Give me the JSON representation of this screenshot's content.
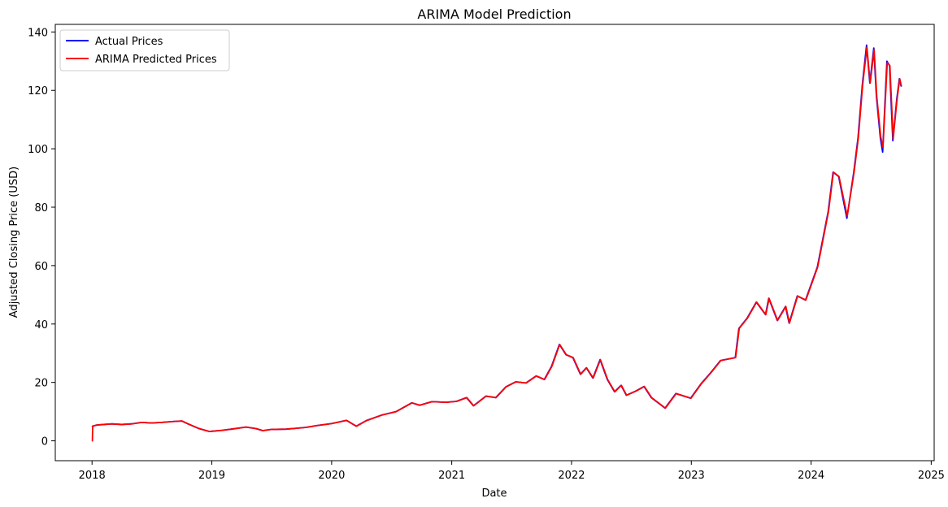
{
  "chart_data": {
    "type": "line",
    "title": "ARIMA Model Prediction",
    "xlabel": "Date",
    "ylabel": "Adjusted Closing Price (USD)",
    "xlim": [
      "2017-09-11",
      "2025-01-10"
    ],
    "ylim": [
      -6.8,
      142.6
    ],
    "x_ticks": [
      "2018",
      "2019",
      "2020",
      "2021",
      "2022",
      "2023",
      "2024",
      "2025"
    ],
    "x_tick_dates": [
      "2018-01-01",
      "2019-01-01",
      "2020-01-01",
      "2021-01-01",
      "2022-01-01",
      "2023-01-01",
      "2024-01-01",
      "2025-01-01"
    ],
    "y_ticks": [
      0,
      20,
      40,
      60,
      80,
      100,
      120,
      140
    ],
    "grid": false,
    "legend": {
      "placement": "top-left"
    },
    "series": [
      {
        "name": "Actual Prices",
        "color": "#0000ff",
        "points": [
          [
            "2018-01-02",
            5.0
          ],
          [
            "2018-01-15",
            5.4
          ],
          [
            "2018-02-05",
            5.6
          ],
          [
            "2018-03-01",
            5.8
          ],
          [
            "2018-04-01",
            5.6
          ],
          [
            "2018-05-01",
            5.8
          ],
          [
            "2018-06-01",
            6.3
          ],
          [
            "2018-07-01",
            6.1
          ],
          [
            "2018-08-01",
            6.3
          ],
          [
            "2018-09-01",
            6.6
          ],
          [
            "2018-10-01",
            6.8
          ],
          [
            "2018-10-20",
            5.8
          ],
          [
            "2018-11-20",
            4.3
          ],
          [
            "2018-12-24",
            3.2
          ],
          [
            "2019-02-01",
            3.6
          ],
          [
            "2019-03-01",
            4.0
          ],
          [
            "2019-04-15",
            4.7
          ],
          [
            "2019-05-15",
            4.2
          ],
          [
            "2019-06-05",
            3.5
          ],
          [
            "2019-07-01",
            3.9
          ],
          [
            "2019-08-15",
            4.0
          ],
          [
            "2019-09-15",
            4.3
          ],
          [
            "2019-10-15",
            4.6
          ],
          [
            "2019-11-15",
            5.2
          ],
          [
            "2019-12-31",
            5.9
          ],
          [
            "2020-02-15",
            7.0
          ],
          [
            "2020-03-16",
            5.0
          ],
          [
            "2020-04-15",
            6.9
          ],
          [
            "2020-06-01",
            8.8
          ],
          [
            "2020-07-15",
            10.0
          ],
          [
            "2020-09-01",
            13.0
          ],
          [
            "2020-09-25",
            12.2
          ],
          [
            "2020-11-01",
            13.4
          ],
          [
            "2020-12-15",
            13.2
          ],
          [
            "2021-01-15",
            13.5
          ],
          [
            "2021-02-15",
            14.8
          ],
          [
            "2021-03-08",
            12.0
          ],
          [
            "2021-04-15",
            15.3
          ],
          [
            "2021-05-15",
            14.8
          ],
          [
            "2021-06-15",
            18.5
          ],
          [
            "2021-07-15",
            20.2
          ],
          [
            "2021-08-15",
            19.8
          ],
          [
            "2021-09-15",
            22.2
          ],
          [
            "2021-10-10",
            21.0
          ],
          [
            "2021-11-01",
            25.5
          ],
          [
            "2021-11-25",
            33.0
          ],
          [
            "2021-12-15",
            29.5
          ],
          [
            "2022-01-05",
            28.5
          ],
          [
            "2022-01-28",
            22.8
          ],
          [
            "2022-02-15",
            25.0
          ],
          [
            "2022-03-07",
            21.5
          ],
          [
            "2022-03-29",
            27.8
          ],
          [
            "2022-04-20",
            21.0
          ],
          [
            "2022-05-12",
            16.8
          ],
          [
            "2022-06-01",
            19.0
          ],
          [
            "2022-06-17",
            15.6
          ],
          [
            "2022-07-15",
            17.0
          ],
          [
            "2022-08-10",
            18.6
          ],
          [
            "2022-09-01",
            14.8
          ],
          [
            "2022-10-13",
            11.2
          ],
          [
            "2022-11-15",
            16.2
          ],
          [
            "2022-12-30",
            14.6
          ],
          [
            "2023-01-31",
            19.6
          ],
          [
            "2023-02-28",
            23.2
          ],
          [
            "2023-03-31",
            27.5
          ],
          [
            "2023-05-15",
            28.5
          ],
          [
            "2023-05-26",
            38.5
          ],
          [
            "2023-06-20",
            42.0
          ],
          [
            "2023-07-18",
            47.5
          ],
          [
            "2023-08-15",
            43.2
          ],
          [
            "2023-08-25",
            48.8
          ],
          [
            "2023-09-20",
            41.2
          ],
          [
            "2023-10-15",
            46.0
          ],
          [
            "2023-10-26",
            40.3
          ],
          [
            "2023-11-20",
            49.6
          ],
          [
            "2023-12-15",
            48.2
          ],
          [
            "2024-01-20",
            59.5
          ],
          [
            "2024-02-22",
            78.5
          ],
          [
            "2024-03-08",
            92.0
          ],
          [
            "2024-03-25",
            90.5
          ],
          [
            "2024-04-19",
            76.2
          ],
          [
            "2024-05-10",
            92.0
          ],
          [
            "2024-05-23",
            103.8
          ],
          [
            "2024-06-05",
            121.8
          ],
          [
            "2024-06-18",
            135.5
          ],
          [
            "2024-06-28",
            122.5
          ],
          [
            "2024-07-10",
            134.5
          ],
          [
            "2024-07-18",
            118.0
          ],
          [
            "2024-07-30",
            103.7
          ],
          [
            "2024-08-06",
            98.9
          ],
          [
            "2024-08-19",
            130.0
          ],
          [
            "2024-08-27",
            128.5
          ],
          [
            "2024-09-06",
            102.8
          ],
          [
            "2024-09-18",
            117.0
          ],
          [
            "2024-09-26",
            124.0
          ],
          [
            "2024-10-01",
            121.5
          ]
        ]
      },
      {
        "name": "ARIMA Predicted Prices",
        "color": "#ff0000",
        "points": [
          [
            "2018-01-02",
            0.0
          ],
          [
            "2018-01-03",
            5.0
          ],
          [
            "2018-01-16",
            5.4
          ],
          [
            "2018-02-06",
            5.6
          ],
          [
            "2018-03-02",
            5.8
          ],
          [
            "2018-04-02",
            5.6
          ],
          [
            "2018-05-02",
            5.8
          ],
          [
            "2018-06-02",
            6.3
          ],
          [
            "2018-07-02",
            6.1
          ],
          [
            "2018-08-02",
            6.3
          ],
          [
            "2018-09-02",
            6.6
          ],
          [
            "2018-10-02",
            6.8
          ],
          [
            "2018-10-21",
            5.8
          ],
          [
            "2018-11-21",
            4.3
          ],
          [
            "2018-12-25",
            3.2
          ],
          [
            "2019-02-02",
            3.6
          ],
          [
            "2019-03-02",
            4.0
          ],
          [
            "2019-04-16",
            4.7
          ],
          [
            "2019-05-16",
            4.2
          ],
          [
            "2019-06-06",
            3.5
          ],
          [
            "2019-07-02",
            3.9
          ],
          [
            "2019-08-16",
            4.0
          ],
          [
            "2019-09-16",
            4.3
          ],
          [
            "2019-10-16",
            4.6
          ],
          [
            "2019-11-16",
            5.2
          ],
          [
            "2020-01-01",
            5.9
          ],
          [
            "2020-02-16",
            7.0
          ],
          [
            "2020-03-17",
            5.0
          ],
          [
            "2020-04-16",
            6.9
          ],
          [
            "2020-06-02",
            8.8
          ],
          [
            "2020-07-16",
            10.0
          ],
          [
            "2020-09-02",
            13.0
          ],
          [
            "2020-09-26",
            12.2
          ],
          [
            "2020-11-02",
            13.4
          ],
          [
            "2020-12-16",
            13.2
          ],
          [
            "2021-01-16",
            13.5
          ],
          [
            "2021-02-16",
            14.8
          ],
          [
            "2021-03-09",
            12.0
          ],
          [
            "2021-04-16",
            15.3
          ],
          [
            "2021-05-16",
            14.8
          ],
          [
            "2021-06-16",
            18.5
          ],
          [
            "2021-07-16",
            20.2
          ],
          [
            "2021-08-16",
            19.8
          ],
          [
            "2021-09-16",
            22.2
          ],
          [
            "2021-10-11",
            21.0
          ],
          [
            "2021-11-02",
            25.5
          ],
          [
            "2021-11-26",
            33.0
          ],
          [
            "2021-12-16",
            29.5
          ],
          [
            "2022-01-06",
            28.5
          ],
          [
            "2022-01-29",
            22.8
          ],
          [
            "2022-02-16",
            25.0
          ],
          [
            "2022-03-08",
            21.5
          ],
          [
            "2022-03-30",
            27.8
          ],
          [
            "2022-04-21",
            21.0
          ],
          [
            "2022-05-13",
            16.8
          ],
          [
            "2022-06-02",
            19.0
          ],
          [
            "2022-06-18",
            15.6
          ],
          [
            "2022-07-16",
            17.0
          ],
          [
            "2022-08-11",
            18.6
          ],
          [
            "2022-09-02",
            14.8
          ],
          [
            "2022-10-14",
            11.2
          ],
          [
            "2022-11-16",
            16.2
          ],
          [
            "2022-12-31",
            14.6
          ],
          [
            "2023-02-01",
            19.6
          ],
          [
            "2023-03-01",
            23.2
          ],
          [
            "2023-04-01",
            27.5
          ],
          [
            "2023-05-16",
            28.5
          ],
          [
            "2023-05-27",
            38.5
          ],
          [
            "2023-06-21",
            42.0
          ],
          [
            "2023-07-19",
            47.5
          ],
          [
            "2023-08-16",
            43.2
          ],
          [
            "2023-08-26",
            48.8
          ],
          [
            "2023-09-21",
            41.2
          ],
          [
            "2023-10-16",
            46.0
          ],
          [
            "2023-10-27",
            40.3
          ],
          [
            "2023-11-21",
            49.6
          ],
          [
            "2023-12-16",
            48.2
          ],
          [
            "2024-01-21",
            59.5
          ],
          [
            "2024-02-23",
            78.5
          ],
          [
            "2024-03-09",
            92.0
          ],
          [
            "2024-03-26",
            90.5
          ],
          [
            "2024-04-20",
            77.0
          ],
          [
            "2024-05-11",
            92.0
          ],
          [
            "2024-05-24",
            103.8
          ],
          [
            "2024-06-06",
            121.8
          ],
          [
            "2024-06-19",
            134.8
          ],
          [
            "2024-06-29",
            122.5
          ],
          [
            "2024-07-11",
            134.0
          ],
          [
            "2024-07-19",
            118.0
          ],
          [
            "2024-07-31",
            104.2
          ],
          [
            "2024-08-07",
            100.5
          ],
          [
            "2024-08-20",
            129.5
          ],
          [
            "2024-08-28",
            128.5
          ],
          [
            "2024-09-07",
            103.5
          ],
          [
            "2024-09-19",
            117.0
          ],
          [
            "2024-09-27",
            124.0
          ],
          [
            "2024-10-02",
            121.5
          ]
        ]
      }
    ]
  }
}
